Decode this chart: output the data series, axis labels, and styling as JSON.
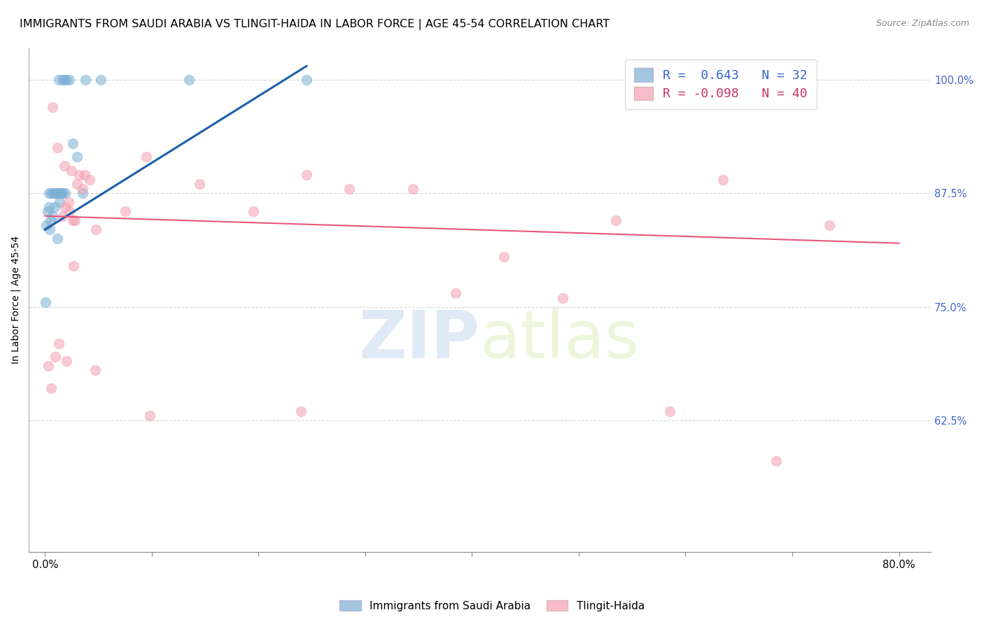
{
  "title": "IMMIGRANTS FROM SAUDI ARABIA VS TLINGIT-HAIDA IN LABOR FORCE | AGE 45-54 CORRELATION CHART",
  "source": "Source: ZipAtlas.com",
  "ylabel": "In Labor Force | Age 45-54",
  "x_tick_labels_shown": [
    "0.0%",
    "80.0%"
  ],
  "x_tick_values_shown": [
    0.0,
    80.0
  ],
  "x_tick_minor_values": [
    10.0,
    20.0,
    30.0,
    40.0,
    50.0,
    60.0,
    70.0
  ],
  "y_tick_labels": [
    "62.5%",
    "75.0%",
    "87.5%",
    "100.0%"
  ],
  "y_tick_values": [
    62.5,
    75.0,
    87.5,
    100.0
  ],
  "xlim": [
    -1.5,
    83.0
  ],
  "ylim": [
    48.0,
    103.5
  ],
  "legend_r_blue": "0.643",
  "legend_n_blue": "32",
  "legend_r_pink": "-0.098",
  "legend_n_pink": "40",
  "legend_label_blue": "Immigrants from Saudi Arabia",
  "legend_label_pink": "Tlingit-Haida",
  "blue_color": "#7bafd4",
  "pink_color": "#f4a0b0",
  "blue_line_color": "#1a5faa",
  "pink_line_color": "#e8567a",
  "watermark_zip": "ZIP",
  "watermark_atlas": "atlas",
  "blue_dots_x": [
    1.3,
    1.6,
    1.8,
    2.0,
    2.3,
    0.4,
    0.6,
    0.8,
    1.0,
    1.1,
    1.2,
    1.4,
    1.5,
    1.7,
    1.9,
    3.8,
    5.2,
    2.6,
    3.0,
    0.9,
    0.7,
    0.5,
    0.45,
    1.15,
    13.5,
    24.5,
    3.5,
    1.35,
    0.35,
    0.25,
    0.15,
    0.08
  ],
  "blue_dots_y": [
    100.0,
    100.0,
    100.0,
    100.0,
    100.0,
    87.5,
    87.5,
    87.5,
    87.5,
    87.5,
    87.5,
    87.5,
    87.5,
    87.5,
    87.5,
    100.0,
    100.0,
    93.0,
    91.5,
    86.0,
    85.0,
    84.5,
    83.5,
    82.5,
    100.0,
    100.0,
    87.5,
    86.5,
    86.0,
    85.5,
    84.0,
    75.5
  ],
  "pink_dots_x": [
    0.3,
    0.7,
    1.2,
    1.8,
    2.5,
    3.2,
    3.7,
    4.2,
    3.0,
    3.5,
    2.2,
    2.8,
    4.8,
    7.5,
    9.5,
    19.5,
    28.5,
    38.5,
    48.5,
    53.5,
    63.5,
    73.5,
    1.9,
    2.3,
    1.6,
    2.6,
    1.0,
    2.0,
    14.5,
    24.5,
    34.5,
    58.5,
    68.5,
    0.6,
    1.3,
    2.7,
    4.7,
    9.8,
    24.0,
    43.0
  ],
  "pink_dots_y": [
    68.5,
    97.0,
    92.5,
    90.5,
    90.0,
    89.5,
    89.5,
    89.0,
    88.5,
    88.0,
    86.5,
    84.5,
    83.5,
    85.5,
    91.5,
    85.5,
    88.0,
    76.5,
    76.0,
    84.5,
    89.0,
    84.0,
    86.0,
    85.5,
    85.0,
    84.5,
    69.5,
    69.0,
    88.5,
    89.5,
    88.0,
    63.5,
    58.0,
    66.0,
    71.0,
    79.5,
    68.0,
    63.0,
    63.5,
    80.5
  ],
  "blue_trend_x0": 0.0,
  "blue_trend_y0": 83.5,
  "blue_trend_x1": 24.5,
  "blue_trend_y1": 101.5,
  "pink_trend_x0": 0.0,
  "pink_trend_y0": 85.0,
  "pink_trend_x1": 80.0,
  "pink_trend_y1": 82.0,
  "dot_size": 110,
  "title_fontsize": 11.5,
  "axis_label_fontsize": 10,
  "tick_fontsize": 10.5,
  "legend_fontsize": 13
}
